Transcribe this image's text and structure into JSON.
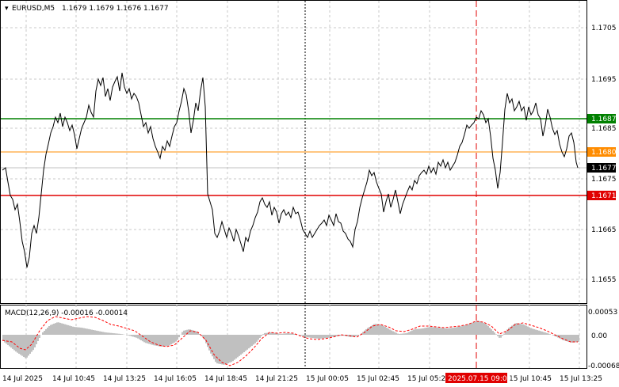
{
  "header": {
    "symbol_label": "EURUSD,M5",
    "ohlc": "1.1679 1.1679 1.1676 1.1677"
  },
  "macd": {
    "label": "MACD(12,26,9) -0.00016 -0.00014",
    "ticks": [
      "0.00053",
      "0.00",
      "-0.00068"
    ]
  },
  "price_axis": {
    "ticks": [
      "1.1705",
      "1.1695",
      "1.1685",
      "1.1675",
      "1.1665",
      "1.1655"
    ]
  },
  "levels": [
    {
      "name": "green-level",
      "label": "1.1687",
      "color": "#008000"
    },
    {
      "name": "orange-level",
      "label": "1.1680",
      "color": "#ff8c00"
    },
    {
      "name": "current-price",
      "label": "1.1677",
      "color": "#000000"
    },
    {
      "name": "red-level",
      "label": "1.1671",
      "color": "#e00000"
    }
  ],
  "time_axis": {
    "labels": [
      "14 Jul 2025",
      "14 Jul 10:45",
      "14 Jul 13:25",
      "14 Jul 16:05",
      "14 Jul 18:45",
      "14 Jul 21:25",
      "15 Jul 00:05",
      "15 Jul 02:45",
      "15 Jul 05:25",
      "15 Jul 10:45",
      "15 Jul 13:25"
    ],
    "highlight_label": "2025.07.15 09:00"
  },
  "colors": {
    "candles": "#000000",
    "macd_histogram": "#c0c0c0",
    "signal_line": "#ff0000",
    "grid": "#c8c8c8",
    "marker_red": "#e00000"
  }
}
